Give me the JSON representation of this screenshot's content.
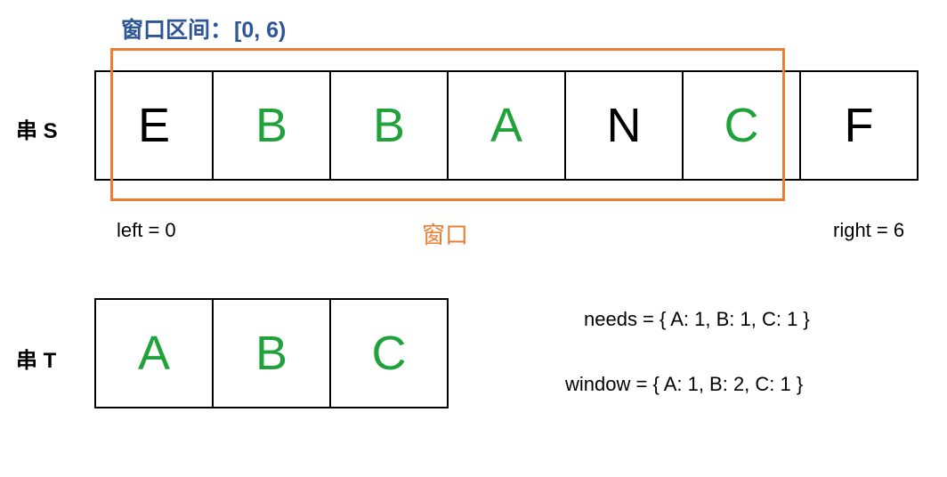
{
  "title": {
    "label": "窗口区间：",
    "range": "[0, 6)"
  },
  "string_s": {
    "label": "串 S",
    "cells": [
      {
        "char": "E",
        "in_t": false
      },
      {
        "char": "B",
        "in_t": true
      },
      {
        "char": "B",
        "in_t": true
      },
      {
        "char": "A",
        "in_t": true
      },
      {
        "char": "N",
        "in_t": false
      },
      {
        "char": "C",
        "in_t": true
      },
      {
        "char": "F",
        "in_t": false
      }
    ]
  },
  "string_t": {
    "label": "串 T",
    "cells": [
      {
        "char": "A",
        "in_t": true
      },
      {
        "char": "B",
        "in_t": true
      },
      {
        "char": "C",
        "in_t": true
      }
    ]
  },
  "pointers": {
    "left": "left = 0",
    "right": "right = 6"
  },
  "window_label": "窗口",
  "maps": {
    "needs": "needs = { A: 1, B: 1, C: 1 }",
    "window": "window = { A: 1, B: 2, C: 1 }"
  },
  "colors": {
    "title": "#2e5596",
    "window_border": "#ed7d31",
    "match_char": "#1fa23a",
    "normal_char": "#000000"
  }
}
